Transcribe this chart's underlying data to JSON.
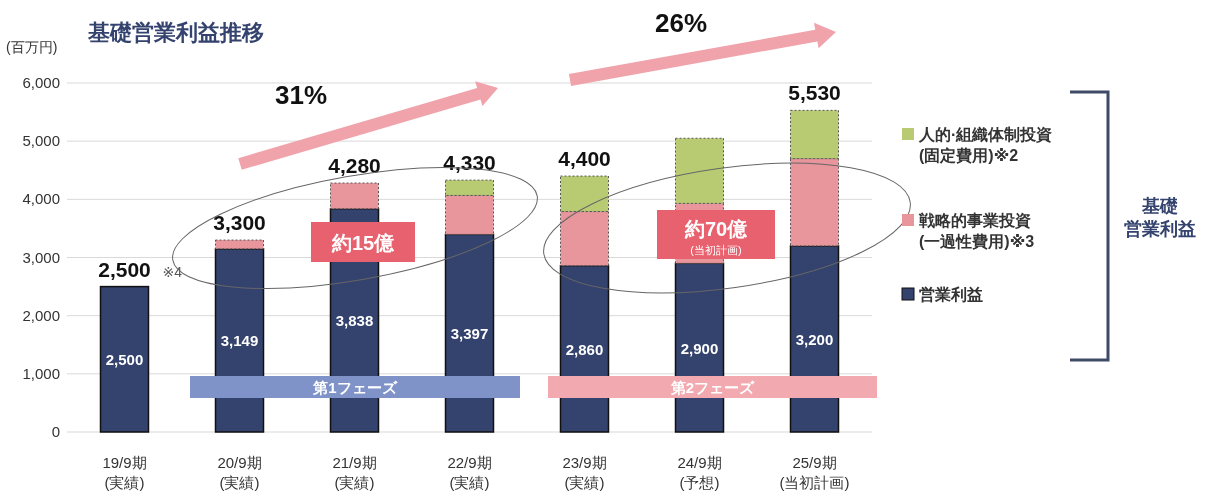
{
  "chart_data": {
    "type": "bar",
    "stacked": true,
    "title": "基礎営業利益推移",
    "ylabel": "(百万円)",
    "categories": [
      "19/9期\n(実績)",
      "20/9期\n(実績)",
      "21/9期\n(実績)",
      "22/9期\n(実績)",
      "23/9期\n(実績)",
      "24/9期\n(予想)",
      "25/9期\n(当初計画)"
    ],
    "series": [
      {
        "name": "営業利益",
        "color": "#34426e",
        "values": [
          2500,
          3149,
          3838,
          3397,
          2860,
          2900,
          3200
        ],
        "value_labels": [
          "2,500",
          "3,149",
          "3,838",
          "3,397",
          "2,860",
          "2,900",
          "3,200"
        ]
      },
      {
        "name": "戦略的事業投資(一過性費用)※3",
        "color": "#e8959c",
        "values": [
          null,
          151,
          442,
          670,
          930,
          1030,
          1500
        ]
      },
      {
        "name": "人的·組織体制投資(固定費用)※2",
        "color": "#b9cb72",
        "values": [
          null,
          null,
          null,
          263,
          610,
          1120,
          830
        ]
      }
    ],
    "totals": [
      "2,500",
      "3,300",
      "4,280",
      "4,330",
      "4,400",
      null,
      "5,530"
    ],
    "ylim": [
      0,
      6000
    ],
    "yticks": [
      0,
      {
        "value": 1000,
        "label": "1,000"
      },
      {
        "value": 2000,
        "label": "2,000"
      },
      {
        "value": 3000,
        "label": "3,000"
      },
      {
        "value": 4000,
        "label": "4,000"
      },
      {
        "value": 5000,
        "label": "5,000"
      },
      {
        "value": 6000,
        "label": "6,000"
      }
    ],
    "grid": "y",
    "legend": "right",
    "annotations": [
      "※4",
      "31%",
      "26%",
      "約15億",
      "約70億",
      "(当初計画)",
      "第1フェーズ",
      "第2フェーズ",
      "基礎営業利益"
    ]
  }
}
